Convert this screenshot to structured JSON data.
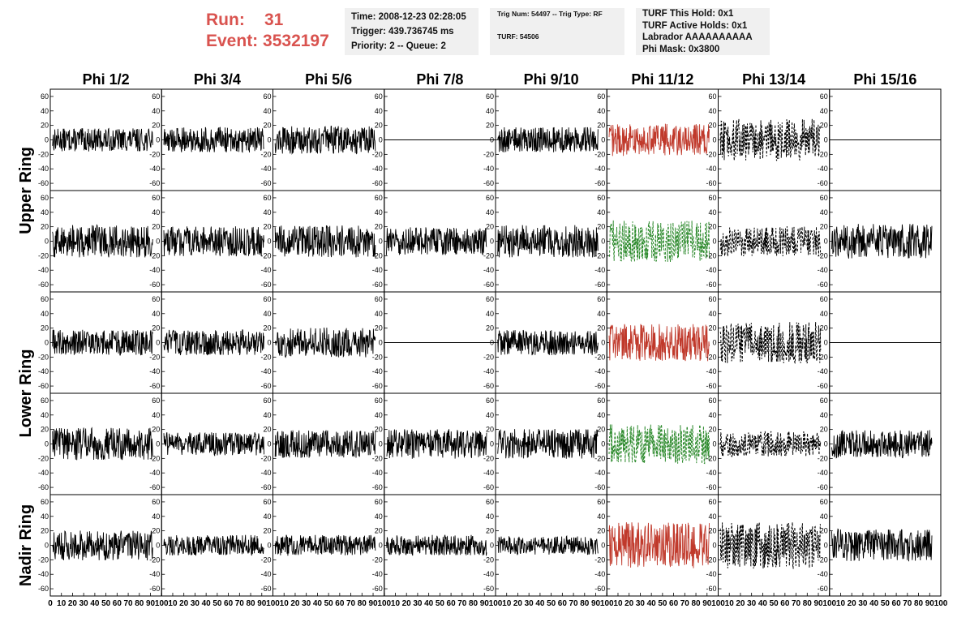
{
  "header": {
    "run_label": "Run:",
    "run_value": "31",
    "event_label": "Event:",
    "event_value": "3532197",
    "time_line": "Time: 2008-12-23 02:28:05",
    "trigger_line": "Trigger: 439.736745 ms",
    "priority_line": "Priority: 2 -- Queue: 2",
    "trig_line": "Trig Num: 54497 -- Trig Type: RF",
    "turf_line": "TURF: 54506",
    "turf_hold_line": "TURF This Hold: 0x1",
    "turf_active_line": "TURF Active Holds: 0x1",
    "labrador_line": "Labrador AAAAAAAAAA",
    "phimask_line": "Phi Mask: 0x3800"
  },
  "chart_data": {
    "type": "line",
    "columns": [
      "Phi 1/2",
      "Phi 3/4",
      "Phi 5/6",
      "Phi 7/8",
      "Phi 9/10",
      "Phi 11/12",
      "Phi 13/14",
      "Phi 15/16"
    ],
    "rows": [
      "Upper Ring",
      "Lower Ring",
      "Nadir Ring"
    ],
    "ylim": [
      -70,
      70
    ],
    "yticks": [
      -60,
      -40,
      -20,
      0,
      20,
      40,
      60
    ],
    "xlim": [
      0,
      100
    ],
    "xticks": [
      0,
      10,
      20,
      30,
      40,
      50,
      60,
      70,
      80,
      90,
      100
    ],
    "colors": {
      "normal": "#000000",
      "hpol_trigger": "#c0392b",
      "vpol_trigger": "#2e8b2e",
      "axis": "#000000"
    },
    "panels": [
      {
        "row": 0,
        "col": 0,
        "amp": 10,
        "style": "solid",
        "color": "normal"
      },
      {
        "row": 0,
        "col": 1,
        "amp": 11,
        "style": "solid",
        "color": "normal"
      },
      {
        "row": 0,
        "col": 2,
        "amp": 12,
        "style": "solid",
        "color": "normal"
      },
      {
        "row": 0,
        "col": 3,
        "amp": 0,
        "style": "flat",
        "color": "normal"
      },
      {
        "row": 0,
        "col": 4,
        "amp": 11,
        "style": "solid",
        "color": "normal"
      },
      {
        "row": 0,
        "col": 5,
        "amp": 14,
        "style": "solid",
        "color": "hpol_trigger"
      },
      {
        "row": 0,
        "col": 6,
        "amp": 18,
        "style": "dashed",
        "color": "normal"
      },
      {
        "row": 0,
        "col": 7,
        "amp": 0,
        "style": "flat",
        "color": "normal"
      },
      {
        "row": 1,
        "col": 0,
        "amp": 14,
        "style": "solid",
        "color": "normal"
      },
      {
        "row": 1,
        "col": 1,
        "amp": 13,
        "style": "solid",
        "color": "normal"
      },
      {
        "row": 1,
        "col": 2,
        "amp": 14,
        "style": "solid",
        "color": "normal"
      },
      {
        "row": 1,
        "col": 3,
        "amp": 12,
        "style": "solid",
        "color": "normal"
      },
      {
        "row": 1,
        "col": 4,
        "amp": 14,
        "style": "solid",
        "color": "normal"
      },
      {
        "row": 1,
        "col": 5,
        "amp": 18,
        "style": "dashed",
        "color": "vpol_trigger"
      },
      {
        "row": 1,
        "col": 6,
        "amp": 13,
        "style": "dashed",
        "color": "normal"
      },
      {
        "row": 1,
        "col": 7,
        "amp": 15,
        "style": "solid",
        "color": "normal"
      },
      {
        "row": 2,
        "col": 0,
        "amp": 11,
        "style": "solid",
        "color": "normal"
      },
      {
        "row": 2,
        "col": 1,
        "amp": 11,
        "style": "solid",
        "color": "normal"
      },
      {
        "row": 2,
        "col": 2,
        "amp": 13,
        "style": "solid",
        "color": "normal"
      },
      {
        "row": 2,
        "col": 3,
        "amp": 0,
        "style": "flat",
        "color": "normal"
      },
      {
        "row": 2,
        "col": 4,
        "amp": 11,
        "style": "solid",
        "color": "normal"
      },
      {
        "row": 2,
        "col": 5,
        "amp": 16,
        "style": "solid",
        "color": "hpol_trigger"
      },
      {
        "row": 2,
        "col": 6,
        "amp": 18,
        "style": "dashed",
        "color": "normal"
      },
      {
        "row": 2,
        "col": 7,
        "amp": 0,
        "style": "flat",
        "color": "normal"
      },
      {
        "row": 3,
        "col": 0,
        "amp": 14,
        "style": "solid",
        "color": "normal"
      },
      {
        "row": 3,
        "col": 1,
        "amp": 10,
        "style": "solid",
        "color": "normal"
      },
      {
        "row": 3,
        "col": 2,
        "amp": 12,
        "style": "solid",
        "color": "normal"
      },
      {
        "row": 3,
        "col": 3,
        "amp": 13,
        "style": "solid",
        "color": "normal"
      },
      {
        "row": 3,
        "col": 4,
        "amp": 13,
        "style": "solid",
        "color": "normal"
      },
      {
        "row": 3,
        "col": 5,
        "amp": 17,
        "style": "dashed",
        "color": "vpol_trigger"
      },
      {
        "row": 3,
        "col": 6,
        "amp": 11,
        "style": "dashed",
        "color": "normal"
      },
      {
        "row": 3,
        "col": 7,
        "amp": 12,
        "style": "solid",
        "color": "normal"
      },
      {
        "row": 4,
        "col": 0,
        "amp": 13,
        "style": "solid",
        "color": "normal"
      },
      {
        "row": 4,
        "col": 1,
        "amp": 9,
        "style": "solid",
        "color": "normal"
      },
      {
        "row": 4,
        "col": 2,
        "amp": 9,
        "style": "solid",
        "color": "normal"
      },
      {
        "row": 4,
        "col": 3,
        "amp": 9,
        "style": "solid",
        "color": "normal"
      },
      {
        "row": 4,
        "col": 4,
        "amp": 8,
        "style": "solid",
        "color": "normal"
      },
      {
        "row": 4,
        "col": 5,
        "amp": 20,
        "style": "solid",
        "color": "hpol_trigger"
      },
      {
        "row": 4,
        "col": 6,
        "amp": 20,
        "style": "dashed",
        "color": "normal"
      },
      {
        "row": 4,
        "col": 7,
        "amp": 14,
        "style": "solid",
        "color": "normal"
      }
    ]
  }
}
